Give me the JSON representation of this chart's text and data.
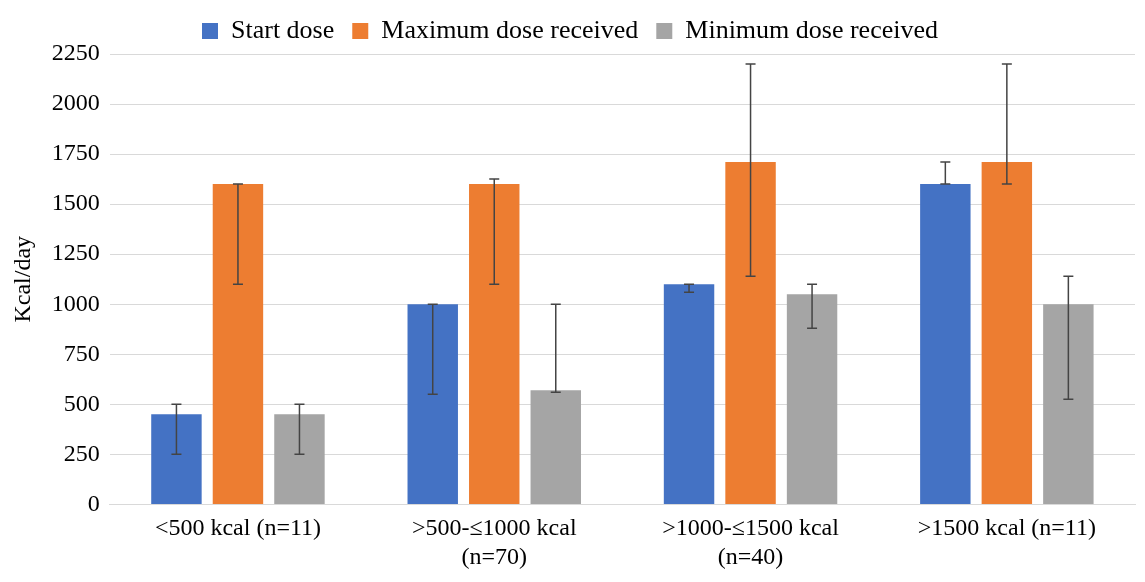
{
  "chart_data": {
    "type": "bar",
    "ylabel": "Kcal/day",
    "categories": [
      "<500 kcal (n=11)",
      ">500-≤1000 kcal (n=70)",
      ">1000-≤1500 kcal (n=40)",
      ">1500 kcal (n=11)"
    ],
    "series": [
      {
        "name": "Start dose",
        "color": "#4472c4",
        "values": [
          450,
          1000,
          1100,
          1600
        ],
        "errors": [
          [
            250,
            500
          ],
          [
            550,
            1000
          ],
          [
            1060,
            1100
          ],
          [
            1600,
            1710
          ]
        ]
      },
      {
        "name": "Maximum dose received",
        "color": "#ed7d31",
        "values": [
          1600,
          1600,
          1710,
          1710
        ],
        "errors": [
          [
            1100,
            1600
          ],
          [
            1100,
            1625
          ],
          [
            1140,
            2200
          ],
          [
            1600,
            2200
          ]
        ]
      },
      {
        "name": "Minimum dose received",
        "color": "#a5a5a5",
        "values": [
          450,
          570,
          1050,
          1000
        ],
        "errors": [
          [
            250,
            500
          ],
          [
            560,
            1000
          ],
          [
            880,
            1100
          ],
          [
            525,
            1140
          ]
        ]
      }
    ],
    "ylim": [
      0,
      2250
    ],
    "yticks": [
      0,
      250,
      500,
      750,
      1000,
      1250,
      1500,
      1750,
      2000,
      2250
    ],
    "grid": "y",
    "legend": "top"
  }
}
